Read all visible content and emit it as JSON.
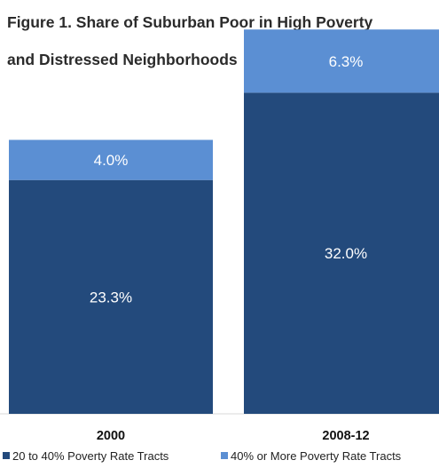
{
  "chart_data": {
    "type": "bar",
    "stacked": true,
    "title_line1": "Figure 1. Share of Suburban Poor in High Poverty",
    "title_line2": "and Distressed Neighborhoods",
    "categories": [
      "2000",
      "2008-12"
    ],
    "series": [
      {
        "name": "20 to 40% Poverty Rate Tracts",
        "values": [
          23.3,
          32.0
        ],
        "labels": [
          "23.3%",
          "32.0%"
        ],
        "color": "#234a7c"
      },
      {
        "name": "40% or More Poverty Rate Tracts",
        "values": [
          4.0,
          6.3
        ],
        "labels": [
          "4.0%",
          "6.3%"
        ],
        "color": "#5b8fd3"
      }
    ],
    "ylim": [
      0,
      40
    ],
    "grid": false,
    "legend_position": "bottom"
  }
}
